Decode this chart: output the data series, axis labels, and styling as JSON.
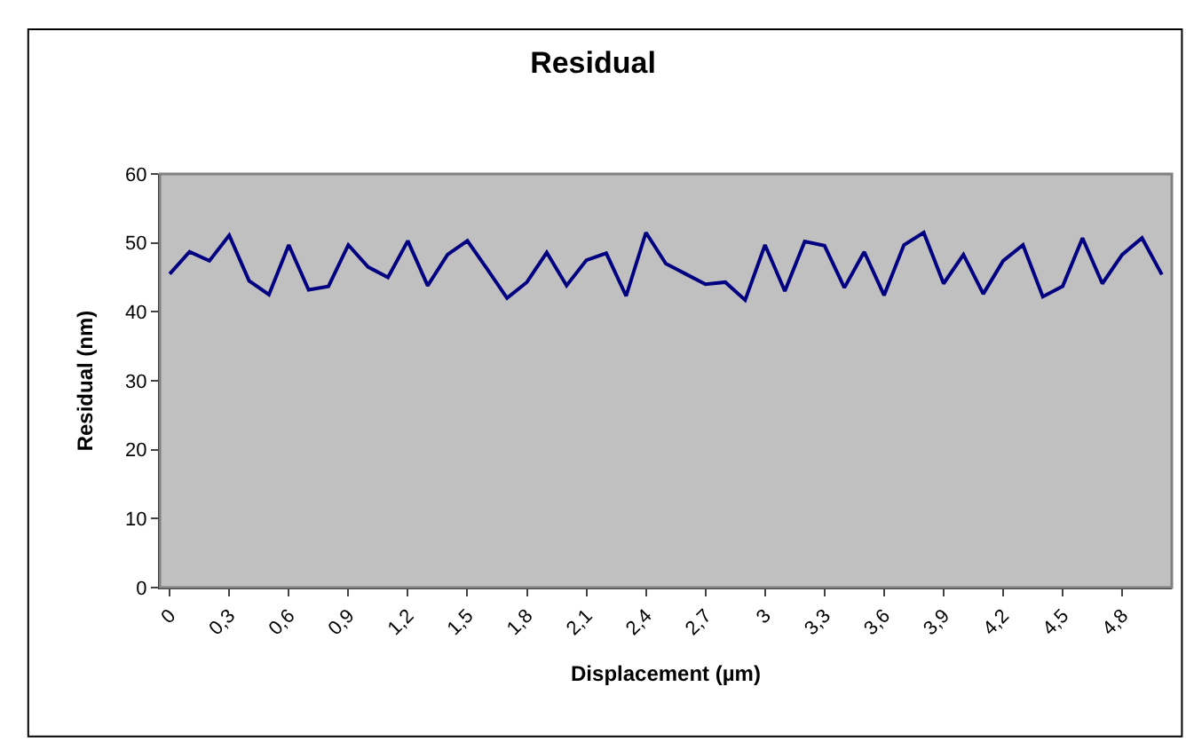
{
  "chart_data": {
    "type": "line",
    "title": "Residual",
    "xlabel": "Displacement (µm)",
    "ylabel": "Residual (nm)",
    "categories": [
      "0",
      null,
      null,
      "0,3",
      null,
      null,
      "0,6",
      null,
      null,
      "0,9",
      null,
      null,
      "1,2",
      null,
      null,
      "1,5",
      null,
      null,
      "1,8",
      null,
      null,
      "2,1",
      null,
      null,
      "2,4",
      null,
      null,
      "2,7",
      null,
      null,
      "3",
      null,
      null,
      "3,3",
      null,
      null,
      "3,6",
      null,
      null,
      "3,9",
      null,
      null,
      "4,2",
      null,
      null,
      "4,5",
      null,
      null,
      "4,8",
      null,
      null
    ],
    "series": [
      {
        "color": "#000080",
        "values": [
          45.5,
          48.7,
          47.4,
          51.1,
          44.5,
          42.5,
          49.7,
          43.2,
          43.7,
          49.7,
          46.5,
          45.0,
          50.3,
          43.8,
          48.3,
          50.3,
          46.2,
          42.0,
          44.3,
          48.6,
          43.8,
          47.5,
          48.5,
          42.3,
          51.5,
          47.0,
          45.5,
          44.0,
          44.3,
          41.7,
          49.7,
          43.0,
          50.2,
          49.6,
          43.5,
          48.7,
          42.4,
          49.7,
          51.5,
          44.1,
          48.3,
          42.6,
          47.4,
          49.7,
          42.2,
          43.7,
          50.7,
          44.1,
          48.3,
          50.7,
          45.4
        ]
      }
    ],
    "ylim": [
      0,
      60
    ],
    "yticks": [
      0,
      10,
      20,
      30,
      40,
      50,
      60
    ],
    "grid": false,
    "marker": "none",
    "line_style": "solid"
  }
}
